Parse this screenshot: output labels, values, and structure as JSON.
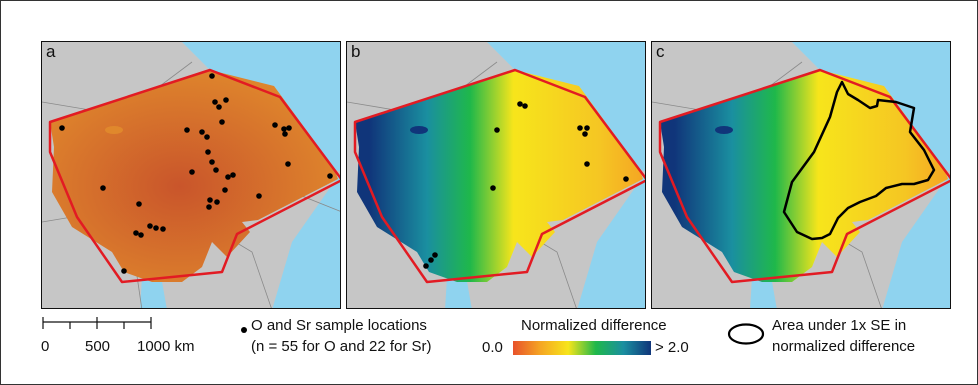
{
  "panels": [
    {
      "label": "a",
      "surface": "orange-map"
    },
    {
      "label": "b",
      "surface": "normalized-difference"
    },
    {
      "label": "c",
      "surface": "normalized-difference-with-se-area"
    }
  ],
  "scale_bar": {
    "ticks": [
      "0",
      "500",
      "1000 km"
    ]
  },
  "legend": {
    "sample_locations_line1": "O and Sr sample locations",
    "sample_locations_line2": "(n = 55 for O and 22 for Sr)",
    "color_title": "Normalized difference",
    "color_min": "0.0",
    "color_max": "> 2.0",
    "se_area_line1": "Area under 1x SE in",
    "se_area_line2": "normalized difference"
  },
  "colors": {
    "sea": "#8fd3ef",
    "land": "#c6c6c6",
    "hull": "#e21b23",
    "orange_surface": "#d8772c",
    "gradient": [
      "#e8522b",
      "#f5a623",
      "#f7e51b",
      "#1fb84a",
      "#1a8fa0",
      "#10357a"
    ]
  }
}
